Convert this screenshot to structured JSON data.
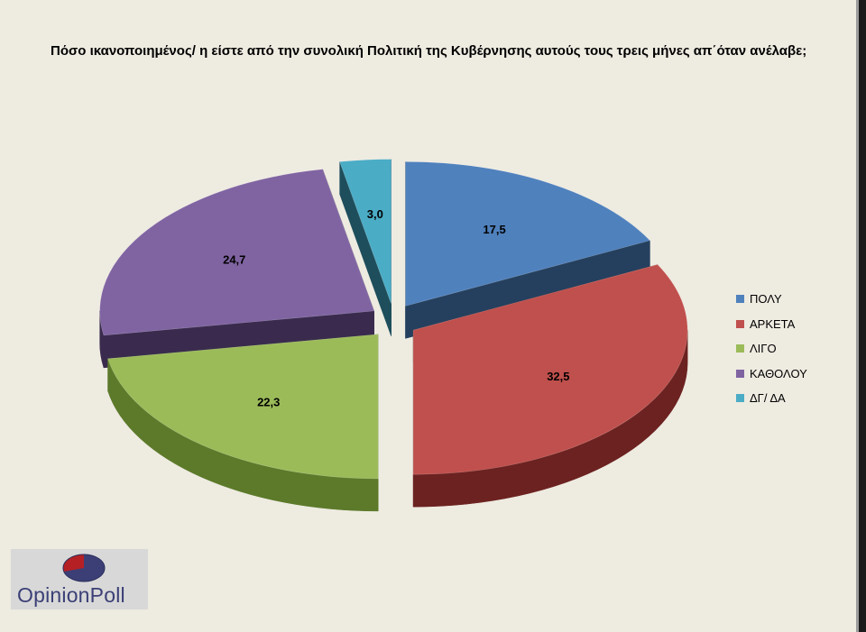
{
  "page": {
    "title": "Πόσο ικανοποιημένος/ η είστε από την συνολική Πολιτική της Κυβέρνησης αυτούς τους τρεις μήνες απ΄όταν ανέλαβε;"
  },
  "chart_data": {
    "type": "pie",
    "style": "3d-exploded",
    "title": "Πόσο ικανοποιημένος/ η είστε από την συνολική Πολιτική της Κυβέρνησης αυτούς τους τρεις μήνες απ΄όταν ανέλαβε;",
    "legend_position": "right",
    "slices": [
      {
        "label": "ΠΟΛΥ",
        "value": 17.5,
        "display": "17,5",
        "color": "#4f81bd",
        "side_color": "#25405e"
      },
      {
        "label": "ΑΡΚΕΤΑ",
        "value": 32.5,
        "display": "32,5",
        "color": "#c0504d",
        "side_color": "#6c2220"
      },
      {
        "label": "ΛΙΓΟ",
        "value": 22.3,
        "display": "22,3",
        "color": "#9bbb59",
        "side_color": "#5c7a2a"
      },
      {
        "label": "ΚΑΘΟΛΟΥ",
        "value": 24.7,
        "display": "24,7",
        "color": "#8064a2",
        "side_color": "#3a2b4e"
      },
      {
        "label": "ΔΓ/ ΔΑ",
        "value": 3.0,
        "display": "3,0",
        "color": "#4bacc6",
        "side_color": "#1e4e5c"
      }
    ]
  },
  "logo": {
    "text": "OpinionPoll"
  }
}
